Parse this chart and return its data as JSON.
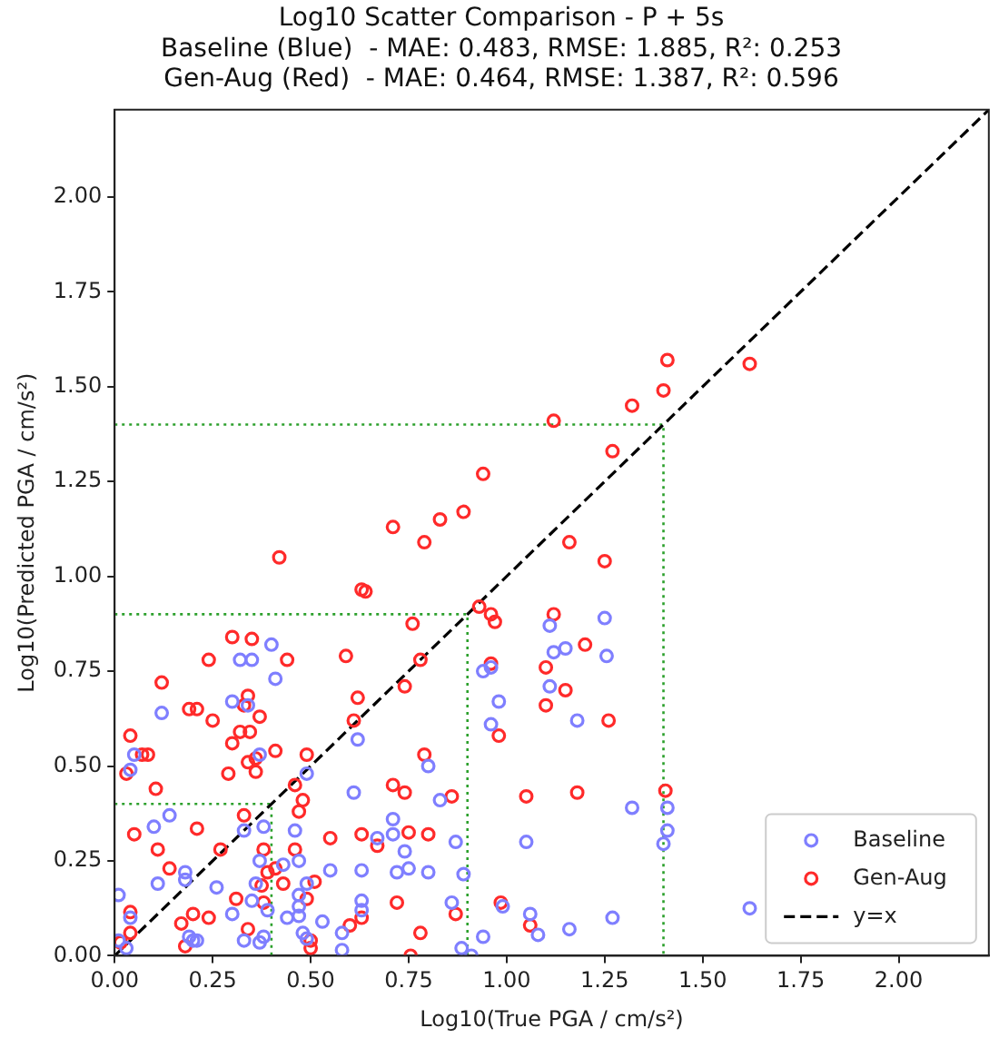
{
  "chart_data": {
    "type": "scatter",
    "title": "Log10 Scatter Comparison - P + 5s",
    "subtitle": "Baseline (Blue)  - MAE: 0.483, RMSE: 1.885, R²: 0.253\nGen-Aug (Red)  - MAE: 0.464, RMSE: 1.387, R²: 0.596",
    "xlabel": "Log10(True PGA / cm/s²)",
    "ylabel": "Log10(Predicted PGA / cm/s²)",
    "xlim": [
      0,
      2.23
    ],
    "ylim": [
      0,
      2.23
    ],
    "xticks": [
      {
        "value": 0,
        "label": "0.00"
      },
      {
        "value": 0.25,
        "label": "0.25"
      },
      {
        "value": 0.5,
        "label": "0.50"
      },
      {
        "value": 0.75,
        "label": "0.75"
      },
      {
        "value": 1,
        "label": "1.00"
      },
      {
        "value": 1.25,
        "label": "1.25"
      },
      {
        "value": 1.5,
        "label": "1.50"
      },
      {
        "value": 1.75,
        "label": "1.75"
      },
      {
        "value": 2,
        "label": "2.00"
      }
    ],
    "yticks": [
      {
        "value": 0,
        "label": "0.00"
      },
      {
        "value": 0.25,
        "label": "0.25"
      },
      {
        "value": 0.5,
        "label": "0.50"
      },
      {
        "value": 0.75,
        "label": "0.75"
      },
      {
        "value": 1,
        "label": "1.00"
      },
      {
        "value": 1.25,
        "label": "1.25"
      },
      {
        "value": 1.5,
        "label": "1.50"
      },
      {
        "value": 1.75,
        "label": "1.75"
      },
      {
        "value": 2,
        "label": "2.00"
      }
    ],
    "legend": "bottom right",
    "series": [
      {
        "name": "Baseline",
        "type": "scatter",
        "marker": "circle",
        "color": "#7f7fff",
        "x": [
          0.4,
          0.32,
          0.35,
          0.41,
          0.3,
          0.34,
          0.12,
          0.05,
          0.04,
          0.37,
          0.49,
          0.14,
          0.1,
          0.33,
          0.38,
          0.46,
          0.37,
          0.43,
          0.47,
          0.18,
          0.18,
          0.11,
          0.26,
          0.01,
          0.36,
          0.49,
          0.55,
          0.47,
          0.47,
          0.53,
          0.35,
          0.3,
          0.39,
          0.04,
          0.44,
          0.47,
          0.38,
          0.33,
          0.37,
          0.19,
          0.2,
          0.21,
          0.48,
          0.49,
          0.03,
          0.01,
          0.58,
          1.11,
          1.12,
          1.15,
          1.11,
          1.18,
          0.94,
          0.96,
          0.98,
          0.96,
          0.62,
          0.8,
          0.61,
          0.83,
          0.71,
          0.67,
          0.71,
          0.74,
          0.87,
          1.05,
          0.63,
          0.72,
          0.75,
          0.8,
          0.89,
          0.63,
          0.63,
          0.86,
          0.99,
          1.06,
          1.08,
          1.16,
          0.94,
          0.885,
          0.58,
          0.91,
          1.25,
          1.255,
          1.32,
          1.41,
          1.41,
          1.4,
          1.62,
          1.27
        ],
        "values": [
          0.82,
          0.78,
          0.78,
          0.73,
          0.67,
          0.66,
          0.64,
          0.53,
          0.49,
          0.53,
          0.48,
          0.37,
          0.34,
          0.33,
          0.34,
          0.33,
          0.25,
          0.24,
          0.25,
          0.22,
          0.2,
          0.19,
          0.18,
          0.16,
          0.19,
          0.19,
          0.225,
          0.16,
          0.13,
          0.09,
          0.145,
          0.11,
          0.12,
          0.1,
          0.1,
          0.105,
          0.05,
          0.04,
          0.035,
          0.05,
          0.04,
          0.04,
          0.06,
          0.045,
          0.02,
          0.04,
          0.06,
          0.87,
          0.8,
          0.81,
          0.71,
          0.62,
          0.75,
          0.76,
          0.67,
          0.61,
          0.57,
          0.5,
          0.43,
          0.41,
          0.36,
          0.31,
          0.32,
          0.275,
          0.3,
          0.3,
          0.225,
          0.22,
          0.23,
          0.22,
          0.215,
          0.145,
          0.12,
          0.14,
          0.13,
          0.11,
          0.055,
          0.07,
          0.05,
          0.02,
          0.015,
          0.0,
          0.89,
          0.79,
          0.39,
          0.39,
          0.33,
          0.295,
          0.125,
          0.1
        ]
      },
      {
        "name": "Gen-Aug",
        "type": "scatter",
        "marker": "circle",
        "color": "#ff2a2a",
        "x": [
          1.41,
          1.62,
          1.4,
          1.32,
          1.12,
          1.27,
          0.94,
          0.89,
          0.83,
          0.71,
          0.79,
          1.16,
          1.25,
          0.42,
          0.63,
          0.64,
          0.93,
          0.3,
          0.35,
          0.24,
          0.44,
          0.12,
          0.19,
          0.21,
          0.25,
          0.34,
          0.33,
          0.37,
          0.32,
          0.345,
          0.3,
          0.04,
          0.07,
          0.085,
          0.41,
          0.34,
          0.36,
          0.49,
          0.29,
          0.36,
          0.03,
          0.105,
          0.46,
          0.48,
          0.47,
          0.33,
          0.21,
          0.05,
          0.27,
          0.11,
          0.38,
          0.55,
          0.14,
          0.41,
          0.39,
          0.46,
          0.43,
          0.51,
          0.49,
          0.375,
          0.31,
          0.38,
          0.04,
          0.2,
          0.24,
          0.17,
          0.04,
          0.34,
          0.18,
          0.015,
          0.5,
          0.5,
          0.76,
          0.96,
          0.97,
          1.12,
          0.59,
          0.78,
          0.74,
          0.62,
          1.1,
          1.15,
          1.1,
          0.96,
          0.98,
          0.61,
          0.79,
          0.71,
          0.74,
          0.86,
          1.05,
          1.18,
          0.63,
          0.67,
          0.75,
          0.8,
          0.72,
          0.985,
          0.63,
          0.6,
          0.78,
          0.87,
          1.06,
          0.755,
          1.2,
          1.26,
          1.405
        ],
        "values": [
          1.57,
          1.56,
          1.49,
          1.45,
          1.41,
          1.33,
          1.27,
          1.17,
          1.15,
          1.13,
          1.09,
          1.09,
          1.04,
          1.05,
          0.965,
          0.96,
          0.92,
          0.84,
          0.835,
          0.78,
          0.78,
          0.72,
          0.65,
          0.65,
          0.62,
          0.685,
          0.66,
          0.63,
          0.59,
          0.59,
          0.56,
          0.58,
          0.53,
          0.53,
          0.54,
          0.51,
          0.52,
          0.53,
          0.48,
          0.485,
          0.48,
          0.44,
          0.45,
          0.41,
          0.38,
          0.37,
          0.335,
          0.32,
          0.28,
          0.28,
          0.28,
          0.31,
          0.23,
          0.23,
          0.22,
          0.28,
          0.19,
          0.195,
          0.15,
          0.185,
          0.15,
          0.14,
          0.115,
          0.11,
          0.1,
          0.085,
          0.06,
          0.07,
          0.025,
          0.035,
          0.04,
          0.02,
          0.875,
          0.9,
          0.88,
          0.9,
          0.79,
          0.78,
          0.71,
          0.68,
          0.76,
          0.7,
          0.66,
          0.77,
          0.58,
          0.62,
          0.53,
          0.45,
          0.43,
          0.42,
          0.42,
          0.43,
          0.32,
          0.29,
          0.325,
          0.32,
          0.14,
          0.14,
          0.1,
          0.08,
          0.06,
          0.11,
          0.08,
          0.0,
          0.82,
          0.62,
          0.435
        ]
      },
      {
        "name": "y=x",
        "type": "line",
        "marker": "none",
        "line_style": "dashed",
        "color": "#000000",
        "x": [
          0,
          2.23
        ],
        "values": [
          0,
          2.23
        ]
      },
      {
        "type": "line",
        "marker": "none",
        "line_style": "dotted",
        "color": "#2ca02c",
        "x": [
          0,
          0.4,
          0.4
        ],
        "values": [
          0.4,
          0.4,
          0
        ]
      },
      {
        "type": "line",
        "marker": "none",
        "line_style": "dotted",
        "color": "#2ca02c",
        "x": [
          0,
          0.9,
          0.9
        ],
        "values": [
          0.9,
          0.9,
          0
        ]
      },
      {
        "type": "line",
        "marker": "none",
        "line_style": "dotted",
        "color": "#2ca02c",
        "x": [
          0,
          1.4,
          1.4
        ],
        "values": [
          1.4,
          1.4,
          0
        ]
      }
    ]
  }
}
